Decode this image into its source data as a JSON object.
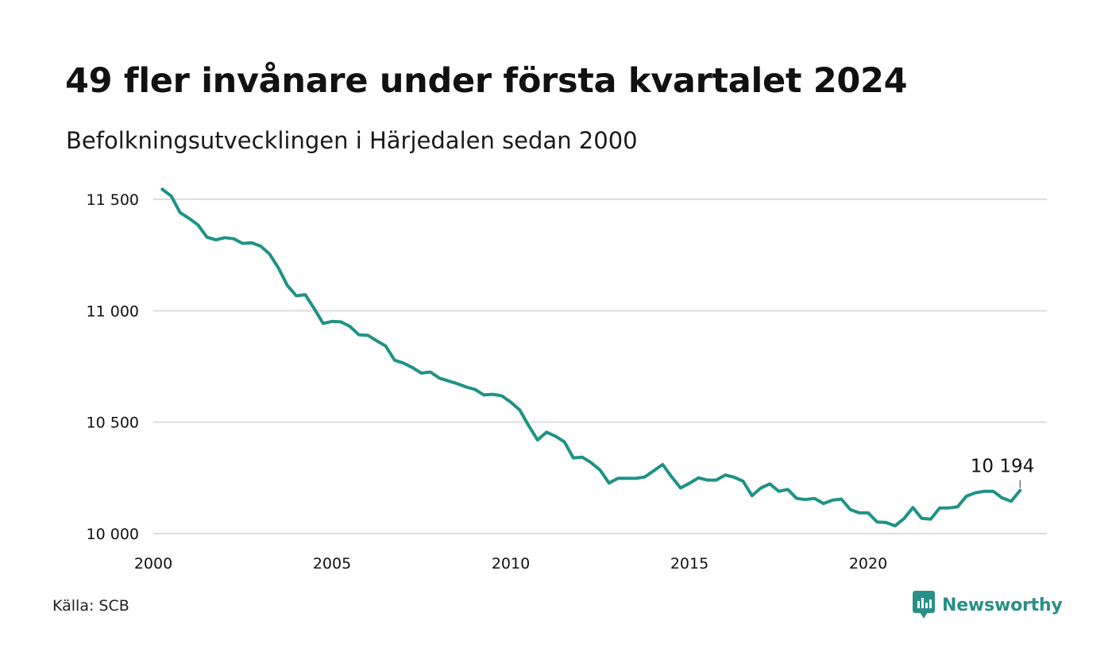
{
  "title": "49 fler invånare under första kvartalet 2024",
  "subtitle": "Befolkningsutvecklingen i Härjedalen sedan 2000",
  "source": "Källa: SCB",
  "brand": {
    "name": "Newsworthy",
    "color": "#2a8f88",
    "icon": "newsworthy-logo-icon"
  },
  "colors": {
    "line": "#1f9286",
    "grid": "#dddddd",
    "text": "#111111"
  },
  "chart_data": {
    "type": "line",
    "title": "49 fler invånare under första kvartalet 2024",
    "subtitle": "Befolkningsutvecklingen i Härjedalen sedan 2000",
    "xlabel": "",
    "ylabel": "",
    "xlim": [
      2000,
      2025
    ],
    "ylim": [
      10000,
      11560
    ],
    "x_ticks": [
      {
        "value": 2000,
        "label": "2000"
      },
      {
        "value": 2005,
        "label": "2005"
      },
      {
        "value": 2010,
        "label": "2010"
      },
      {
        "value": 2015,
        "label": "2015"
      },
      {
        "value": 2020,
        "label": "2020"
      }
    ],
    "y_ticks": [
      {
        "value": 10000,
        "label": "10 000"
      },
      {
        "value": 10500,
        "label": "10 500"
      },
      {
        "value": 11000,
        "label": "11 000"
      },
      {
        "value": 11500,
        "label": "11 500"
      }
    ],
    "grid": true,
    "last_label": "10 194",
    "series": [
      {
        "values": [
          [
            2000.25,
            11545
          ],
          [
            2000.5,
            11515
          ],
          [
            2000.75,
            11440
          ],
          [
            2001.0,
            11415
          ],
          [
            2001.25,
            11385
          ],
          [
            2001.5,
            11330
          ],
          [
            2001.75,
            11318
          ],
          [
            2002.0,
            11328
          ],
          [
            2002.25,
            11323
          ],
          [
            2002.5,
            11302
          ],
          [
            2002.75,
            11305
          ],
          [
            2003.0,
            11290
          ],
          [
            2003.25,
            11255
          ],
          [
            2003.5,
            11192
          ],
          [
            2003.75,
            11113
          ],
          [
            2004.0,
            11067
          ],
          [
            2004.25,
            11072
          ],
          [
            2004.5,
            11010
          ],
          [
            2004.75,
            10943
          ],
          [
            2005.0,
            10952
          ],
          [
            2005.25,
            10950
          ],
          [
            2005.5,
            10930
          ],
          [
            2005.75,
            10892
          ],
          [
            2006.0,
            10890
          ],
          [
            2006.25,
            10865
          ],
          [
            2006.5,
            10842
          ],
          [
            2006.75,
            10778
          ],
          [
            2007.0,
            10765
          ],
          [
            2007.25,
            10745
          ],
          [
            2007.5,
            10720
          ],
          [
            2007.75,
            10725
          ],
          [
            2008.0,
            10698
          ],
          [
            2008.25,
            10685
          ],
          [
            2008.5,
            10673
          ],
          [
            2008.75,
            10658
          ],
          [
            2009.0,
            10647
          ],
          [
            2009.25,
            10622
          ],
          [
            2009.5,
            10625
          ],
          [
            2009.75,
            10618
          ],
          [
            2010.0,
            10590
          ],
          [
            2010.25,
            10555
          ],
          [
            2010.5,
            10485
          ],
          [
            2010.75,
            10420
          ],
          [
            2011.0,
            10455
          ],
          [
            2011.25,
            10437
          ],
          [
            2011.5,
            10412
          ],
          [
            2011.75,
            10340
          ],
          [
            2012.0,
            10343
          ],
          [
            2012.25,
            10318
          ],
          [
            2012.5,
            10285
          ],
          [
            2012.75,
            10227
          ],
          [
            2013.0,
            10248
          ],
          [
            2013.25,
            10248
          ],
          [
            2013.5,
            10248
          ],
          [
            2013.75,
            10254
          ],
          [
            2014.0,
            10282
          ],
          [
            2014.25,
            10310
          ],
          [
            2014.5,
            10255
          ],
          [
            2014.75,
            10205
          ],
          [
            2015.0,
            10226
          ],
          [
            2015.25,
            10250
          ],
          [
            2015.5,
            10240
          ],
          [
            2015.75,
            10240
          ],
          [
            2016.0,
            10263
          ],
          [
            2016.25,
            10253
          ],
          [
            2016.5,
            10235
          ],
          [
            2016.75,
            10170
          ],
          [
            2017.0,
            10205
          ],
          [
            2017.25,
            10223
          ],
          [
            2017.5,
            10190
          ],
          [
            2017.75,
            10198
          ],
          [
            2018.0,
            10158
          ],
          [
            2018.25,
            10153
          ],
          [
            2018.5,
            10158
          ],
          [
            2018.75,
            10135
          ],
          [
            2019.0,
            10150
          ],
          [
            2019.25,
            10155
          ],
          [
            2019.5,
            10108
          ],
          [
            2019.75,
            10093
          ],
          [
            2020.0,
            10093
          ],
          [
            2020.25,
            10052
          ],
          [
            2020.5,
            10050
          ],
          [
            2020.75,
            10035
          ],
          [
            2021.0,
            10067
          ],
          [
            2021.25,
            10117
          ],
          [
            2021.5,
            10068
          ],
          [
            2021.75,
            10065
          ],
          [
            2022.0,
            10115
          ],
          [
            2022.25,
            10115
          ],
          [
            2022.5,
            10120
          ],
          [
            2022.75,
            10168
          ],
          [
            2023.0,
            10183
          ],
          [
            2023.25,
            10190
          ],
          [
            2023.5,
            10190
          ],
          [
            2023.75,
            10160
          ],
          [
            2024.0,
            10145
          ],
          [
            2024.25,
            10194
          ]
        ]
      }
    ]
  }
}
